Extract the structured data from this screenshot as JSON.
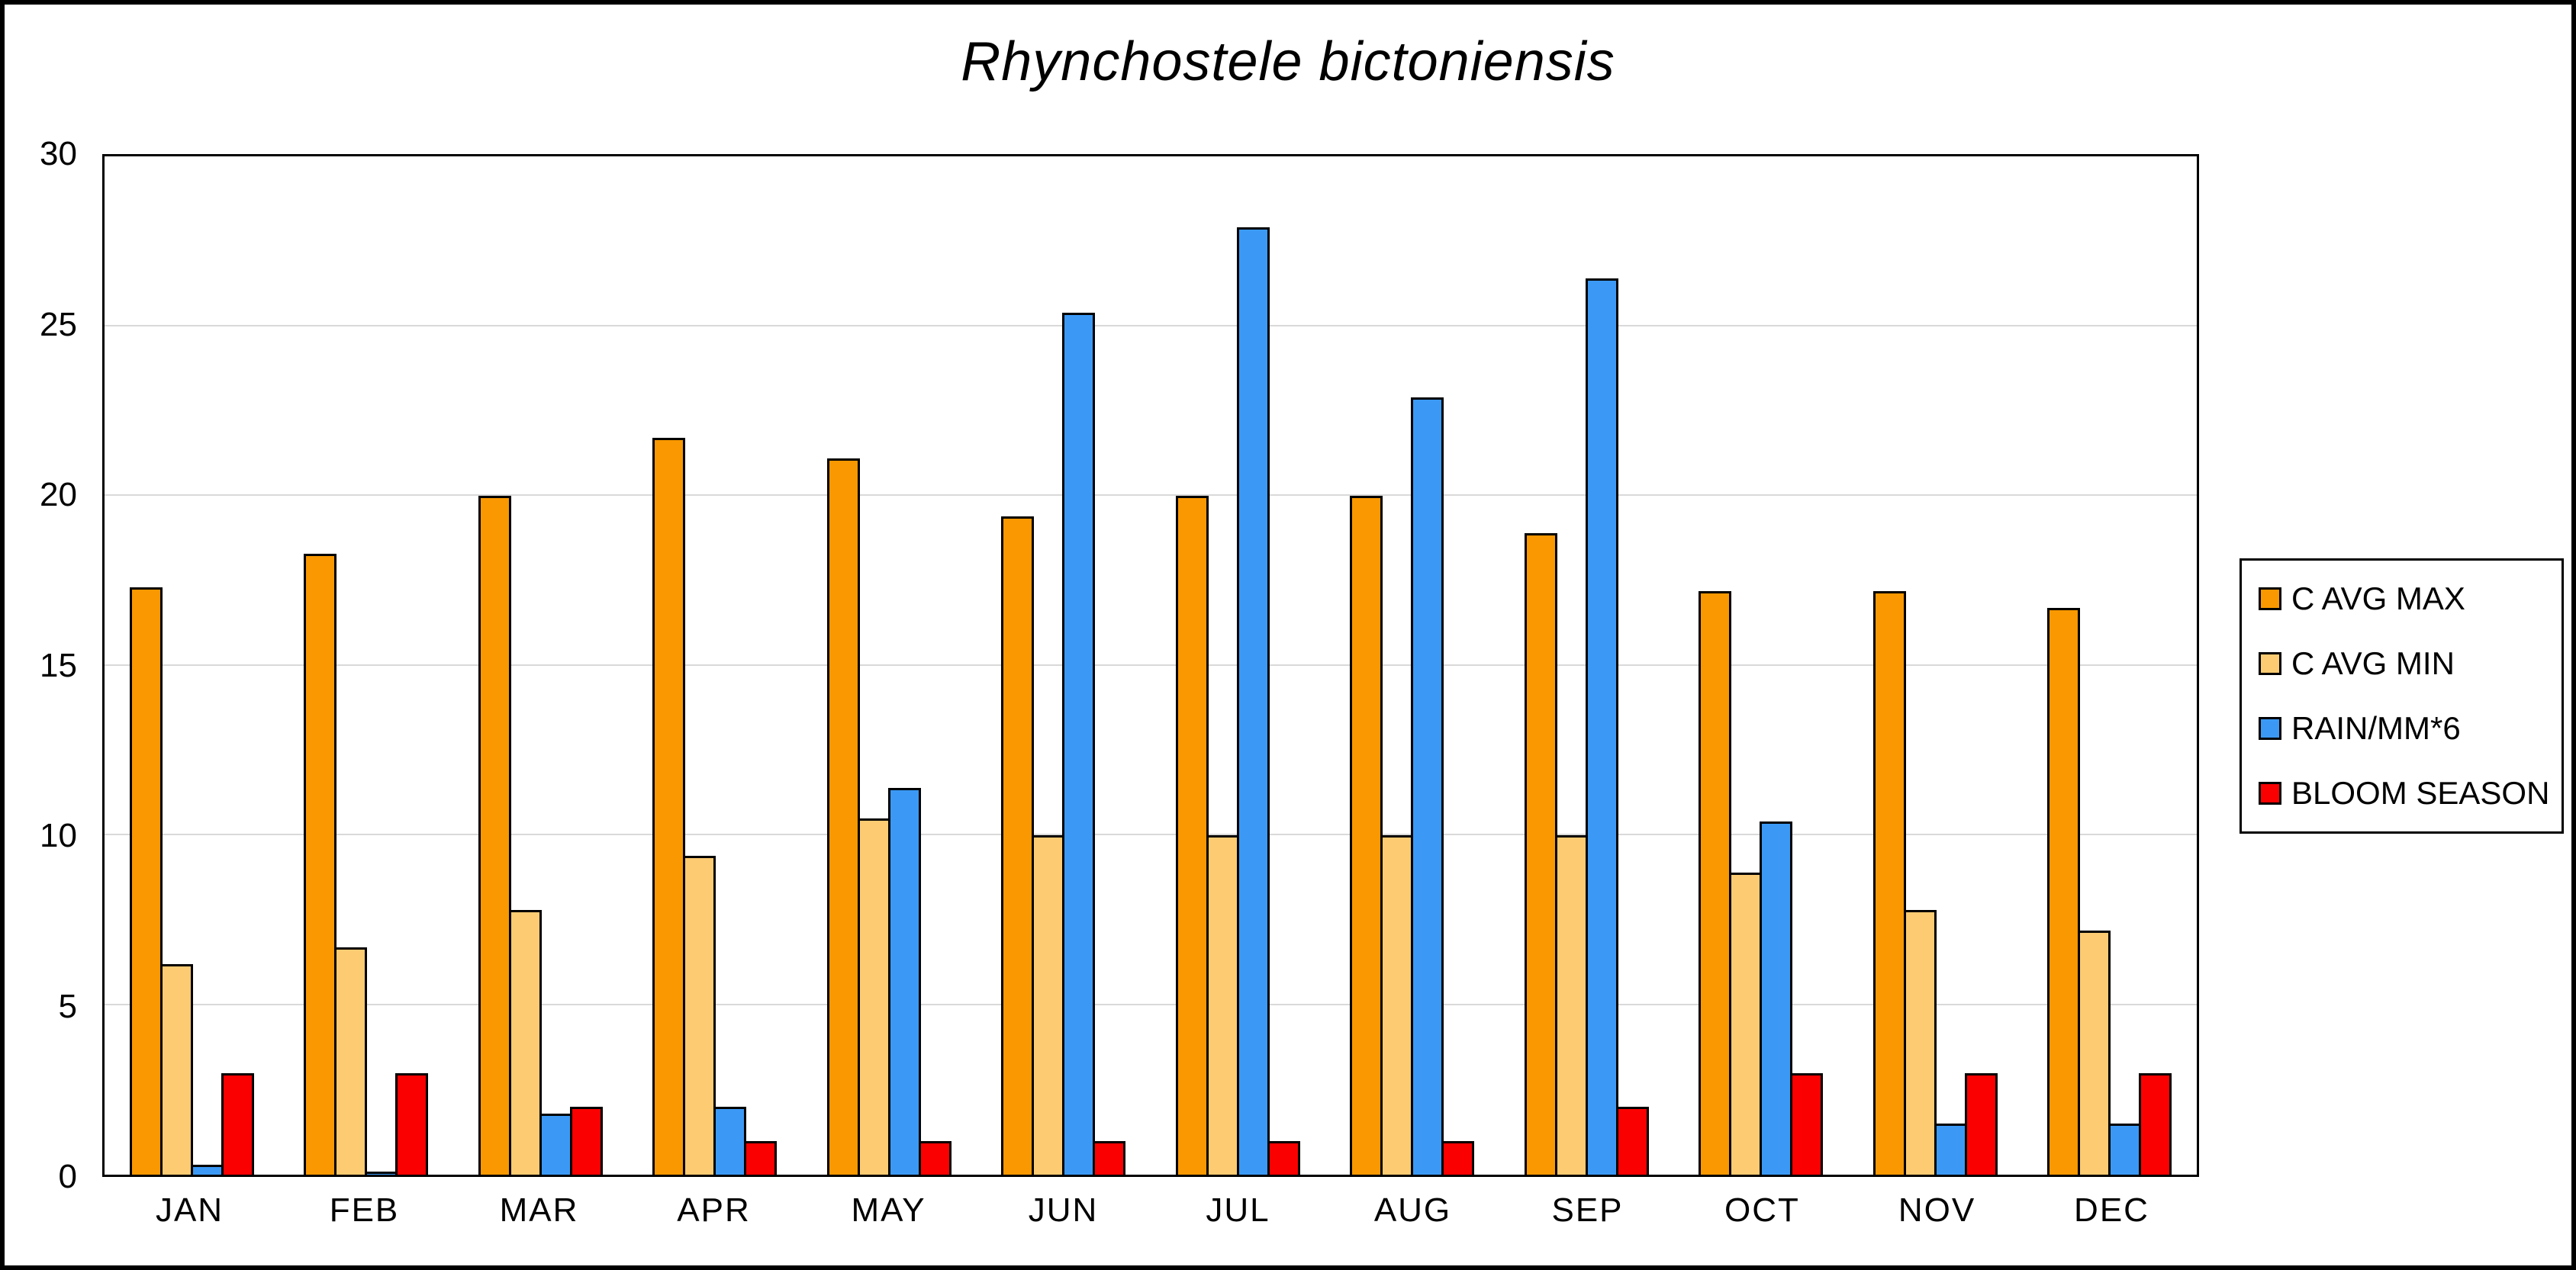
{
  "chart": {
    "title": "Rhynchostele bictoniensis"
  },
  "chart_data": {
    "type": "bar",
    "title": "Rhynchostele bictoniensis",
    "categories": [
      "JAN",
      "FEB",
      "MAR",
      "APR",
      "MAY",
      "JUN",
      "JUL",
      "AUG",
      "SEP",
      "OCT",
      "NOV",
      "DEC"
    ],
    "series": [
      {
        "name": "C AVG MAX",
        "color": "#F99800",
        "values": [
          17.3,
          18.3,
          20.0,
          21.7,
          21.1,
          19.4,
          20.0,
          20.0,
          18.9,
          17.2,
          17.2,
          16.7
        ]
      },
      {
        "name": "C AVG MIN",
        "color": "#FDCB72",
        "values": [
          6.2,
          6.7,
          7.8,
          9.4,
          10.5,
          10.0,
          10.0,
          10.0,
          10.0,
          8.9,
          7.8,
          7.2
        ]
      },
      {
        "name": "RAIN/MM*6",
        "color": "#3B99F5",
        "values": [
          0.3,
          0.1,
          1.8,
          2.0,
          11.4,
          25.4,
          27.9,
          22.9,
          26.4,
          10.4,
          1.5,
          1.5
        ]
      },
      {
        "name": "BLOOM SEASON",
        "color": "#FB0000",
        "values": [
          3,
          3,
          2,
          1,
          1,
          1,
          1,
          1,
          2,
          3,
          3,
          3
        ]
      }
    ],
    "xlabel": "",
    "ylabel": "",
    "ylim": [
      0,
      30
    ],
    "yticks": [
      0,
      5,
      10,
      15,
      20,
      25,
      30
    ],
    "grid": true,
    "gridline_color": "#D9D9D9",
    "legend_position": "right"
  }
}
